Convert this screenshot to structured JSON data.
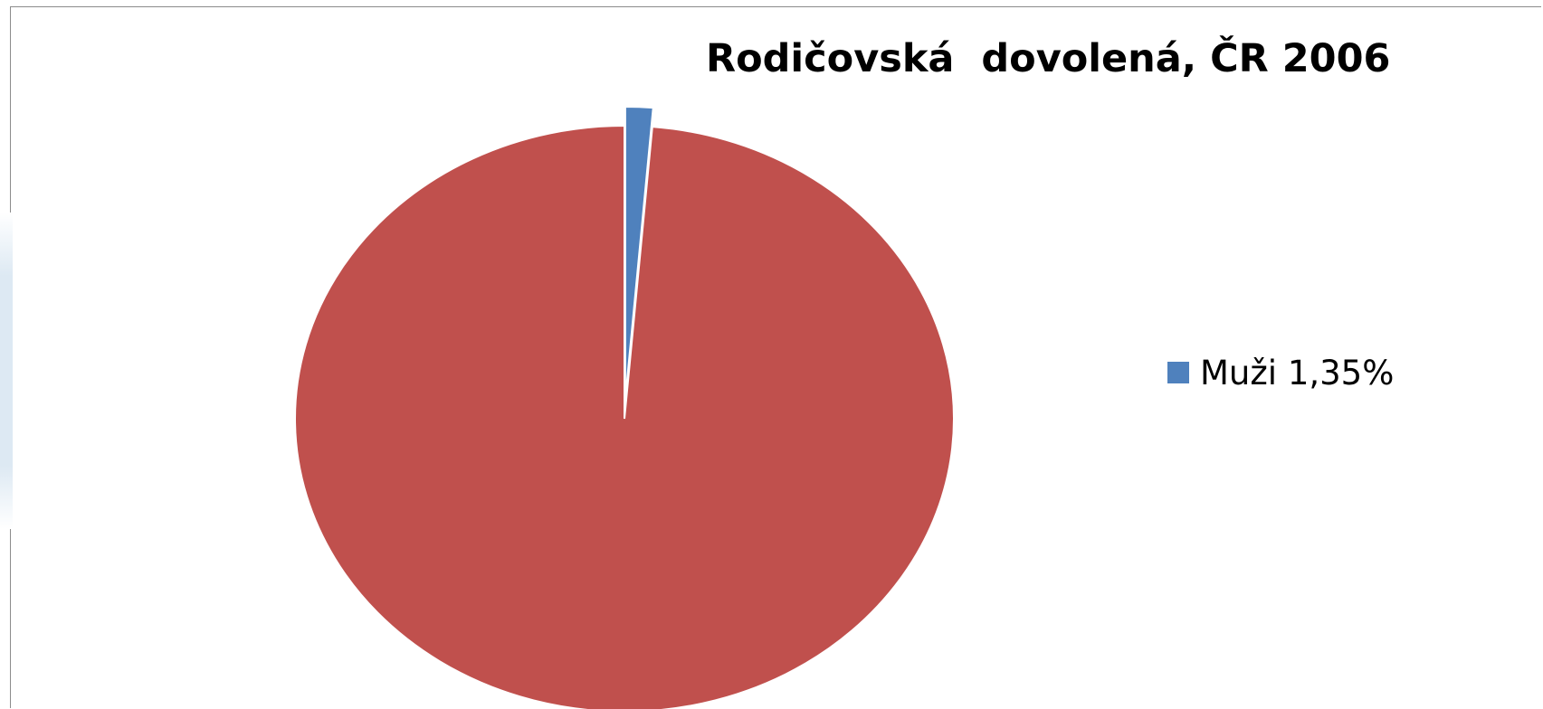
{
  "chart_data": {
    "type": "pie",
    "title": "Rodičovská  dovolená, ČR 2006",
    "slices": [
      {
        "label": "Muži 1,35%",
        "value": 1.35,
        "color": "#4f81bd",
        "exploded": true,
        "in_legend": true
      },
      {
        "label": "",
        "value": 98.65,
        "color": "#c0504d",
        "exploded": false,
        "in_legend": false
      }
    ],
    "start_angle_deg": 0,
    "legend_position": "right"
  }
}
